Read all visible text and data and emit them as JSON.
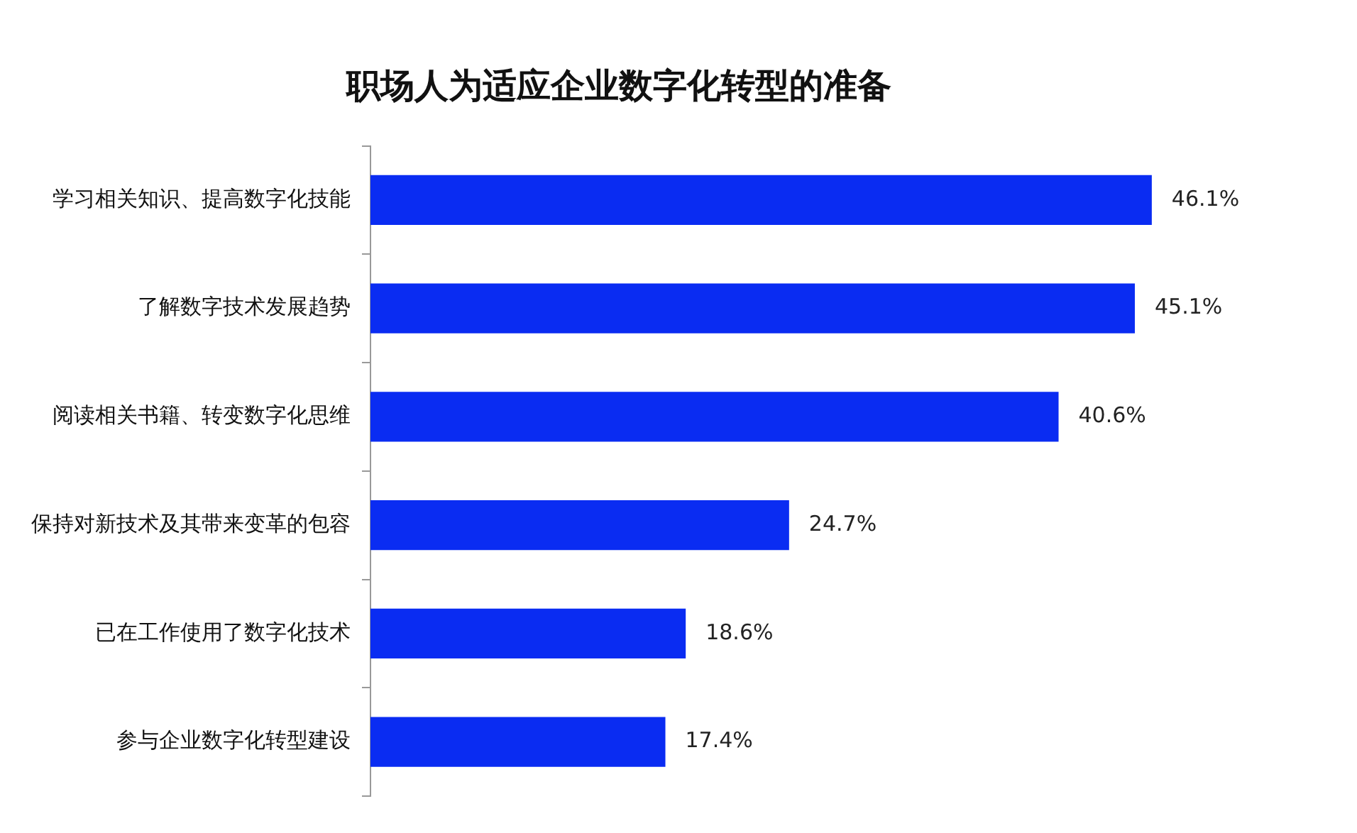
{
  "chart_data": {
    "type": "bar",
    "orientation": "horizontal",
    "title": "职场人为适应企业数字化转型的准备",
    "categories": [
      "学习相关知识、提高数字化技能",
      "了解数字技术发展趋势",
      "阅读相关书籍、转变数字化思维",
      "保持对新技术及其带来变革的包容",
      "已在工作使用了数字化技术",
      "参与企业数字化转型建设"
    ],
    "values": [
      46.1,
      45.1,
      40.6,
      24.7,
      18.6,
      17.4
    ],
    "value_labels": [
      "46.1%",
      "45.1%",
      "40.6%",
      "24.7%",
      "18.6%",
      "17.4%"
    ],
    "color": "#0a2cf2",
    "legend": false
  }
}
